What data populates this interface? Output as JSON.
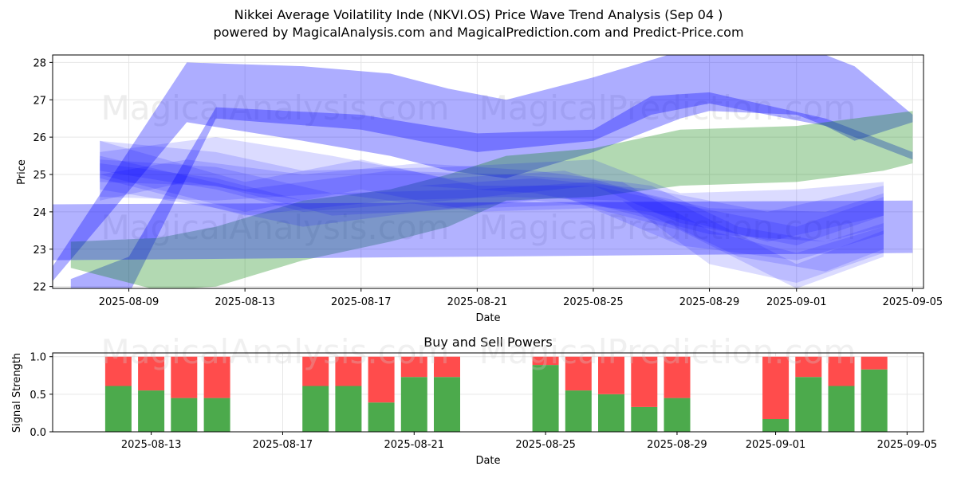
{
  "header": {
    "title_line1": "Nikkei Average Voilatility Inde (NKVI.OS) Price Wave Trend Analysis (Sep 04 )",
    "title_line2": "powered by MagicalAnalysis.com and MagicalPrediction.com and Predict-Price.com"
  },
  "watermarks": [
    "MagicalAnalysis.com",
    "MagicalPrediction.com"
  ],
  "colors": {
    "blue_band": "#0000ff",
    "green_band": "#008000",
    "buy": "#4caa4c",
    "sell": "#ff4c4c",
    "grid": "#e6e6e6"
  },
  "chart_data": [
    {
      "type": "area",
      "title": "",
      "xlabel": "Date",
      "ylabel": "Price",
      "xlim": [
        "2025-08-06T09:00",
        "2025-09-05T09:00"
      ],
      "ylim": [
        21.95,
        28.2
      ],
      "x_ticks": [
        "2025-08-09",
        "2025-08-13",
        "2025-08-17",
        "2025-08-21",
        "2025-08-25",
        "2025-08-29",
        "2025-09-01",
        "2025-09-05"
      ],
      "y_ticks": [
        22,
        23,
        24,
        25,
        26,
        27,
        28
      ],
      "grid": true,
      "bands": [
        {
          "color": "blue",
          "opacity": 0.32,
          "x": [
            "2025-08-06",
            "2025-08-11",
            "2025-08-15",
            "2025-08-18",
            "2025-08-20",
            "2025-08-22",
            "2025-08-25",
            "2025-08-28",
            "2025-08-29",
            "2025-09-01",
            "2025-09-02",
            "2025-09-03",
            "2025-09-05"
          ],
          "lower": [
            21.8,
            26.4,
            25.9,
            25.5,
            25.1,
            24.9,
            25.6,
            26.5,
            26.7,
            26.6,
            26.3,
            25.9,
            26.4
          ],
          "upper": [
            22.1,
            28.0,
            27.9,
            27.7,
            27.3,
            27.0,
            27.6,
            28.3,
            28.4,
            28.3,
            28.2,
            27.9,
            26.6
          ]
        },
        {
          "color": "blue",
          "opacity": 0.32,
          "x": [
            "2025-08-07",
            "2025-08-09",
            "2025-08-12",
            "2025-08-17",
            "2025-08-21",
            "2025-08-25",
            "2025-08-27",
            "2025-08-29",
            "2025-09-02",
            "2025-09-05"
          ],
          "lower": [
            21.9,
            21.8,
            26.5,
            26.2,
            25.6,
            25.9,
            26.6,
            26.9,
            26.3,
            25.4
          ],
          "upper": [
            22.2,
            22.8,
            26.8,
            26.6,
            26.1,
            26.2,
            27.1,
            27.2,
            26.5,
            25.6
          ]
        },
        {
          "color": "green",
          "opacity": 0.3,
          "x": [
            "2025-08-07",
            "2025-08-10",
            "2025-08-12",
            "2025-08-15",
            "2025-08-18",
            "2025-08-20",
            "2025-08-22",
            "2025-08-25",
            "2025-08-28",
            "2025-09-01",
            "2025-09-04",
            "2025-09-05"
          ],
          "lower": [
            22.5,
            21.9,
            22.0,
            22.7,
            23.2,
            23.6,
            24.3,
            24.4,
            24.7,
            24.8,
            25.1,
            25.3
          ],
          "upper": [
            23.2,
            23.3,
            23.6,
            24.3,
            24.6,
            25.0,
            25.5,
            25.7,
            26.2,
            26.3,
            26.6,
            26.7
          ]
        },
        {
          "color": "blue",
          "opacity": 0.3,
          "x": [
            "2025-08-06",
            "2025-09-05"
          ],
          "lower": [
            22.7,
            22.9
          ],
          "upper": [
            24.2,
            24.3
          ]
        },
        {
          "color": "blue",
          "opacity": 0.14,
          "x": [
            "2025-08-08",
            "2025-08-12",
            "2025-08-15",
            "2025-08-20",
            "2025-08-25",
            "2025-08-28",
            "2025-09-01",
            "2025-09-04"
          ],
          "lower": [
            25.1,
            24.6,
            24.0,
            24.3,
            24.7,
            23.7,
            23.1,
            23.9
          ],
          "upper": [
            25.9,
            25.6,
            25.1,
            25.2,
            25.4,
            24.5,
            24.6,
            24.8
          ]
        },
        {
          "color": "blue",
          "opacity": 0.14,
          "x": [
            "2025-08-08",
            "2025-08-12",
            "2025-08-16",
            "2025-08-20",
            "2025-08-24",
            "2025-08-28",
            "2025-09-01",
            "2025-09-04"
          ],
          "lower": [
            24.4,
            24.3,
            24.5,
            24.1,
            24.4,
            23.1,
            22.7,
            23.4
          ],
          "upper": [
            25.6,
            26.0,
            25.5,
            24.9,
            25.1,
            24.2,
            23.6,
            24.4
          ]
        },
        {
          "color": "blue",
          "opacity": 0.14,
          "x": [
            "2025-08-08",
            "2025-08-13",
            "2025-08-18",
            "2025-08-22",
            "2025-08-26",
            "2025-08-29",
            "2025-09-01",
            "2025-09-04"
          ],
          "lower": [
            24.9,
            23.9,
            24.3,
            24.4,
            24.3,
            22.6,
            22.1,
            22.9
          ],
          "upper": [
            25.5,
            24.6,
            25.1,
            25.0,
            24.8,
            23.5,
            22.9,
            23.6
          ]
        },
        {
          "color": "blue",
          "opacity": 0.14,
          "x": [
            "2025-08-08",
            "2025-08-12",
            "2025-08-16",
            "2025-08-21",
            "2025-08-25",
            "2025-08-29",
            "2025-09-02",
            "2025-09-04"
          ],
          "lower": [
            24.8,
            24.7,
            23.9,
            24.1,
            24.2,
            23.4,
            23.2,
            23.6
          ],
          "upper": [
            25.4,
            25.2,
            24.5,
            24.6,
            24.8,
            24.1,
            24.0,
            24.5
          ]
        },
        {
          "color": "blue",
          "opacity": 0.14,
          "x": [
            "2025-08-08",
            "2025-08-11",
            "2025-08-15",
            "2025-08-19",
            "2025-08-23",
            "2025-08-27",
            "2025-08-30",
            "2025-09-02",
            "2025-09-04"
          ],
          "lower": [
            24.3,
            24.8,
            24.3,
            24.7,
            24.5,
            23.9,
            22.8,
            22.4,
            23.0
          ],
          "upper": [
            25.0,
            25.4,
            25.0,
            25.3,
            25.1,
            24.7,
            23.6,
            23.2,
            23.7
          ]
        },
        {
          "color": "blue",
          "opacity": 0.14,
          "x": [
            "2025-08-08",
            "2025-08-13",
            "2025-08-17",
            "2025-08-21",
            "2025-08-25",
            "2025-08-28",
            "2025-09-01",
            "2025-09-04"
          ],
          "lower": [
            25.0,
            24.0,
            24.6,
            24.0,
            24.1,
            23.5,
            21.95,
            22.8
          ],
          "upper": [
            25.9,
            24.8,
            25.4,
            24.7,
            24.7,
            24.2,
            22.6,
            23.5
          ]
        },
        {
          "color": "blue",
          "opacity": 0.14,
          "x": [
            "2025-08-08",
            "2025-08-12",
            "2025-08-15",
            "2025-08-19",
            "2025-08-23",
            "2025-08-27",
            "2025-08-31",
            "2025-09-04"
          ],
          "lower": [
            24.6,
            24.1,
            23.6,
            24.0,
            24.3,
            24.0,
            23.2,
            23.9
          ],
          "upper": [
            25.3,
            24.9,
            24.3,
            24.7,
            24.9,
            24.6,
            24.0,
            24.7
          ]
        }
      ]
    },
    {
      "type": "bar",
      "title": "Buy and Sell Powers",
      "xlabel": "Date",
      "ylabel": "Signal Strength",
      "xlim": [
        "2025-08-10T00:00",
        "2025-09-05T12:00"
      ],
      "ylim": [
        0,
        1.05
      ],
      "x_ticks": [
        "2025-08-13",
        "2025-08-17",
        "2025-08-21",
        "2025-08-25",
        "2025-08-29",
        "2025-09-01",
        "2025-09-05"
      ],
      "y_ticks": [
        "0.0",
        "0.5",
        "1.0"
      ],
      "grid": true,
      "series": [
        {
          "name": "Buy",
          "color": "green"
        },
        {
          "name": "Sell",
          "color": "red"
        }
      ],
      "bars": [
        {
          "date": "2025-08-12",
          "buy": 0.61,
          "sell": 0.39
        },
        {
          "date": "2025-08-13",
          "buy": 0.55,
          "sell": 0.45
        },
        {
          "date": "2025-08-14",
          "buy": 0.45,
          "sell": 0.55
        },
        {
          "date": "2025-08-15",
          "buy": 0.45,
          "sell": 0.55
        },
        {
          "date": "2025-08-18",
          "buy": 0.61,
          "sell": 0.39
        },
        {
          "date": "2025-08-19",
          "buy": 0.61,
          "sell": 0.39
        },
        {
          "date": "2025-08-20",
          "buy": 0.39,
          "sell": 0.61
        },
        {
          "date": "2025-08-21",
          "buy": 0.73,
          "sell": 0.27
        },
        {
          "date": "2025-08-22",
          "buy": 0.73,
          "sell": 0.27
        },
        {
          "date": "2025-08-25",
          "buy": 0.89,
          "sell": 0.11
        },
        {
          "date": "2025-08-26",
          "buy": 0.55,
          "sell": 0.45
        },
        {
          "date": "2025-08-27",
          "buy": 0.5,
          "sell": 0.5
        },
        {
          "date": "2025-08-28",
          "buy": 0.33,
          "sell": 0.67
        },
        {
          "date": "2025-08-29",
          "buy": 0.45,
          "sell": 0.55
        },
        {
          "date": "2025-09-01",
          "buy": 0.17,
          "sell": 0.83
        },
        {
          "date": "2025-09-02",
          "buy": 0.73,
          "sell": 0.27
        },
        {
          "date": "2025-09-03",
          "buy": 0.61,
          "sell": 0.39
        },
        {
          "date": "2025-09-04",
          "buy": 0.83,
          "sell": 0.17
        }
      ]
    }
  ]
}
